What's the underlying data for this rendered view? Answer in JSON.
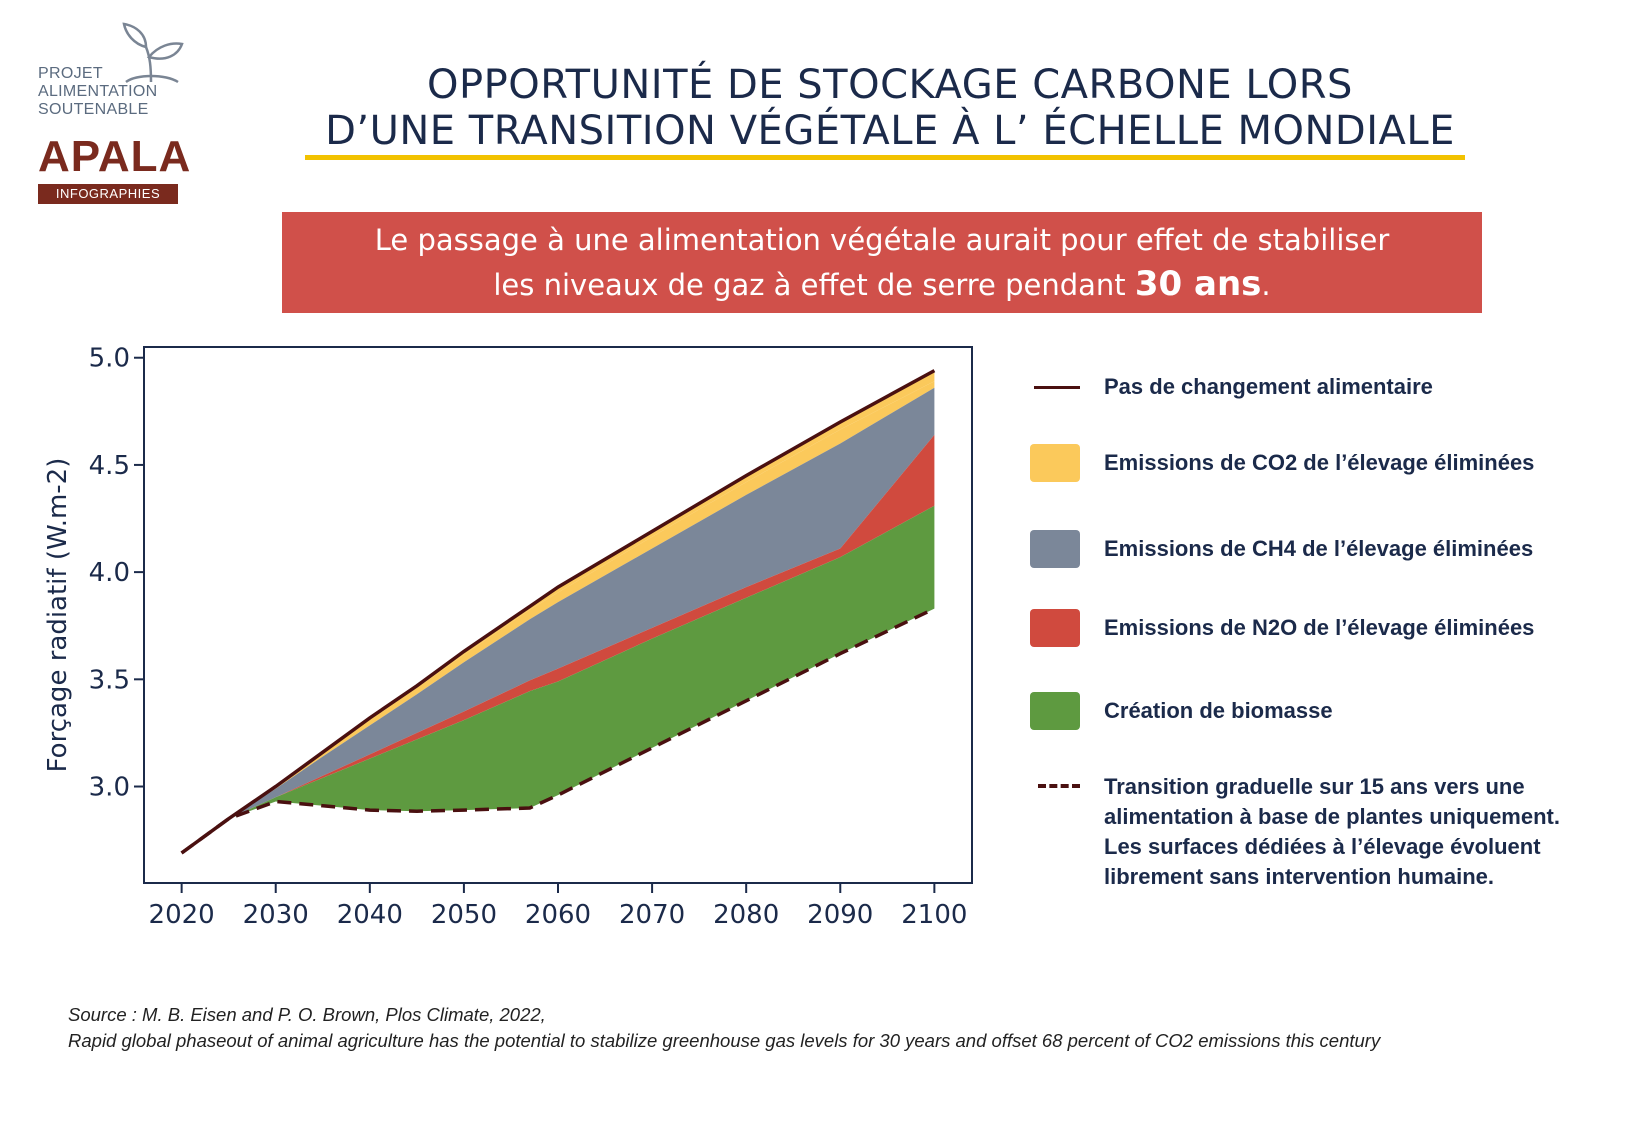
{
  "logo": {
    "line1": "PROJET",
    "line2": "ALIMENTATION",
    "line3": "SOUTENABLE",
    "brand": "APALA",
    "tag": "INFOGRAPHIES",
    "icon": "sprout-icon"
  },
  "title": {
    "line1": "OPPORTUNITÉ DE STOCKAGE CARBONE LORS",
    "line2": "D’UNE TRANSITION VÉGÉTALE À L’ ÉCHELLE MONDIALE",
    "rule_color": "#f2c200"
  },
  "banner": {
    "line1": "Le passage à une alimentation végétale aurait pour effet de stabiliser",
    "line2_before": "les niveaux de gaz à effet de serre pendant ",
    "highlight": "30 ans",
    "line2_after": ".",
    "color": "#d0504a"
  },
  "chart_data": {
    "type": "area",
    "ylabel": "Forçage radiatif (W.m-2)",
    "xlabel": "",
    "xlim": [
      2016,
      2104
    ],
    "ylim": [
      2.55,
      5.05
    ],
    "x_ticks": [
      2020,
      2030,
      2040,
      2050,
      2060,
      2070,
      2080,
      2090,
      2100
    ],
    "y_ticks": [
      "3.0",
      "3.5",
      "4.0",
      "4.5",
      "5.0"
    ],
    "y_tick_values": [
      3.0,
      3.5,
      4.0,
      4.5,
      5.0
    ],
    "x": [
      2020,
      2025,
      2030,
      2035,
      2040,
      2045,
      2050,
      2057,
      2060,
      2070,
      2080,
      2090,
      2100
    ],
    "series": [
      {
        "name": "Pas de changement alimentaire",
        "kind": "line",
        "color": "#4a1010",
        "values": [
          2.69,
          2.85,
          3.0,
          3.16,
          3.32,
          3.47,
          3.63,
          3.84,
          3.93,
          4.19,
          4.45,
          4.7,
          4.94
        ]
      },
      {
        "name": "Emissions de CO2 de l’élevage éliminées",
        "kind": "band",
        "color": "#fbc95b",
        "values": [
          2.69,
          2.85,
          3.0,
          3.155,
          3.31,
          3.46,
          3.615,
          3.825,
          3.905,
          4.165,
          4.42,
          4.665,
          4.89
        ]
      },
      {
        "name": "Emissions de CH4 de l’élevage éliminées",
        "kind": "band",
        "color": "#7b8799",
        "values": [
          2.69,
          2.85,
          2.99,
          3.14,
          3.285,
          3.43,
          3.58,
          3.78,
          3.86,
          4.11,
          4.36,
          4.6,
          4.86
        ]
      },
      {
        "name": "Emissions de N2O de l’élevage éliminées",
        "kind": "band",
        "color": "#d04a3e",
        "values": [
          2.69,
          2.85,
          2.95,
          3.05,
          3.15,
          3.25,
          3.35,
          3.495,
          3.55,
          3.74,
          3.93,
          4.11,
          4.64
        ]
      },
      {
        "name": "Création de biomasse",
        "kind": "band",
        "color": "#5e9a40",
        "values": [
          2.69,
          2.85,
          2.95,
          3.04,
          3.13,
          3.22,
          3.31,
          3.445,
          3.49,
          3.69,
          3.88,
          4.07,
          4.31
        ]
      },
      {
        "name": "Transition graduelle sur 15 ans vers une alimentation à base de plantes uniquement. Les surfaces dédiées à l’élevage évoluent librement sans intervention humaine.",
        "kind": "dashed",
        "color": "#4a1010",
        "values": [
          2.69,
          2.85,
          2.93,
          2.91,
          2.89,
          2.885,
          2.89,
          2.9,
          2.96,
          3.18,
          3.4,
          3.62,
          3.83
        ]
      }
    ],
    "axis_color": "#1b2a4a"
  },
  "legend": {
    "items": [
      {
        "label": "Pas de changement alimentaire",
        "kind": "line"
      },
      {
        "label": "Emissions de CO2 de l’élevage éliminées",
        "kind": "swatch",
        "color": "#fbc95b"
      },
      {
        "label": "Emissions de CH4 de l’élevage éliminées",
        "kind": "swatch",
        "color": "#7b8799"
      },
      {
        "label": "Emissions de N2O de l’élevage éliminées",
        "kind": "swatch",
        "color": "#d04a3e"
      },
      {
        "label": "Création de biomasse",
        "kind": "swatch",
        "color": "#5e9a40"
      }
    ],
    "dashed": {
      "line1": "Transition graduelle sur 15 ans vers une",
      "line2": "alimentation à base de plantes uniquement.",
      "line3": "Les surfaces dédiées à l’élevage évoluent",
      "line4": "librement sans intervention humaine."
    }
  },
  "source": {
    "line1": "Source : M. B. Eisen and P. O. Brown, Plos Climate, 2022,",
    "line2": "Rapid global phaseout of animal agriculture has the potential to stabilize greenhouse gas levels for 30 years and offset 68 percent of CO2 emissions this century"
  }
}
